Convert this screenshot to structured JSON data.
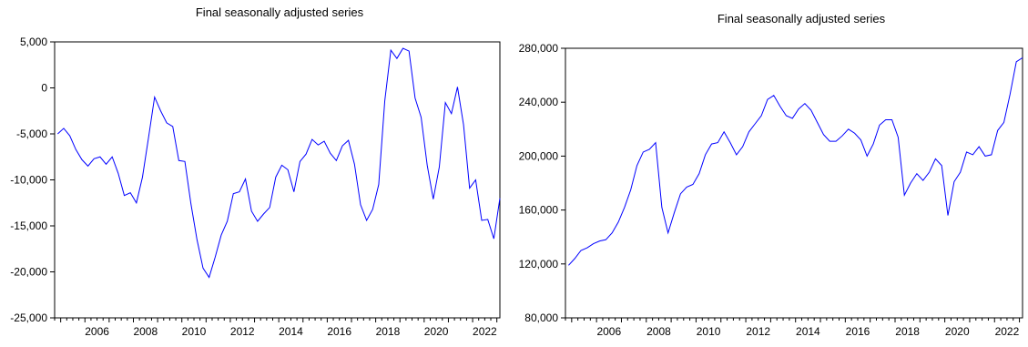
{
  "chart_data": [
    {
      "type": "line",
      "title": "Final seasonally adjusted series",
      "xlabel": "",
      "ylabel": "",
      "x_start": 2004.875,
      "x_step": 0.25,
      "xlim": [
        2004.75,
        2023.125
      ],
      "ylim": [
        -25000,
        5000
      ],
      "x_ticks": [
        "2006",
        "2008",
        "2010",
        "2012",
        "2014",
        "2016",
        "2018",
        "2020",
        "2022"
      ],
      "y_ticks": [
        "5,000",
        "0",
        "-5,000",
        "-10,000",
        "-15,000",
        "-20,000",
        "-25,000"
      ],
      "y_tick_values": [
        5000,
        0,
        -5000,
        -10000,
        -15000,
        -20000,
        -25000
      ],
      "series": [
        {
          "color": "#0000ff",
          "values": [
            -5000,
            -4400,
            -5200,
            -6700,
            -7800,
            -8500,
            -7700,
            -7500,
            -8300,
            -7500,
            -9300,
            -11700,
            -11400,
            -12500,
            -9700,
            -5400,
            -1000,
            -2500,
            -3800,
            -4200,
            -7900,
            -8000,
            -12600,
            -16500,
            -19600,
            -20600,
            -18400,
            -16000,
            -14500,
            -11500,
            -11300,
            -9900,
            -13400,
            -14500,
            -13700,
            -13000,
            -9700,
            -8400,
            -8900,
            -11300,
            -8000,
            -7200,
            -5600,
            -6200,
            -5800,
            -7100,
            -7900,
            -6300,
            -5700,
            -8300,
            -12700,
            -14400,
            -13200,
            -10500,
            -1400,
            4100,
            3200,
            4300,
            4000,
            -1100,
            -3200,
            -8400,
            -12100,
            -8600,
            -1600,
            -2800,
            100,
            -4000,
            -10900,
            -10000,
            -14400,
            -14300,
            -16400,
            -12000
          ]
        }
      ]
    },
    {
      "type": "line",
      "title": "Final seasonally adjusted series",
      "xlabel": "",
      "ylabel": "",
      "x_start": 2004.875,
      "x_step": 0.25,
      "xlim": [
        2004.75,
        2023.125
      ],
      "ylim": [
        80000,
        280000
      ],
      "x_ticks": [
        "2006",
        "2008",
        "2010",
        "2012",
        "2014",
        "2016",
        "2018",
        "2020",
        "2022"
      ],
      "y_ticks": [
        "280,000",
        "240,000",
        "200,000",
        "160,000",
        "120,000",
        "80,000"
      ],
      "y_tick_values": [
        280000,
        240000,
        200000,
        160000,
        120000,
        80000
      ],
      "series": [
        {
          "color": "#0000ff",
          "values": [
            119000,
            124000,
            130000,
            132000,
            135000,
            137000,
            138000,
            143000,
            151000,
            162000,
            175000,
            193000,
            203000,
            205000,
            210000,
            162000,
            143000,
            158000,
            172000,
            177000,
            179000,
            187000,
            201000,
            209000,
            210000,
            218000,
            210000,
            201000,
            207000,
            218000,
            224000,
            230000,
            242000,
            245000,
            237000,
            230000,
            228000,
            235000,
            239000,
            234000,
            225000,
            216000,
            211000,
            211000,
            215000,
            220000,
            217000,
            212000,
            200000,
            209000,
            223000,
            227000,
            227000,
            214000,
            171000,
            180000,
            187000,
            182000,
            188000,
            198000,
            193000,
            156000,
            181000,
            188000,
            203000,
            201000,
            207000,
            200000,
            201000,
            219000,
            225000,
            246000,
            270000,
            273000
          ]
        }
      ]
    }
  ]
}
